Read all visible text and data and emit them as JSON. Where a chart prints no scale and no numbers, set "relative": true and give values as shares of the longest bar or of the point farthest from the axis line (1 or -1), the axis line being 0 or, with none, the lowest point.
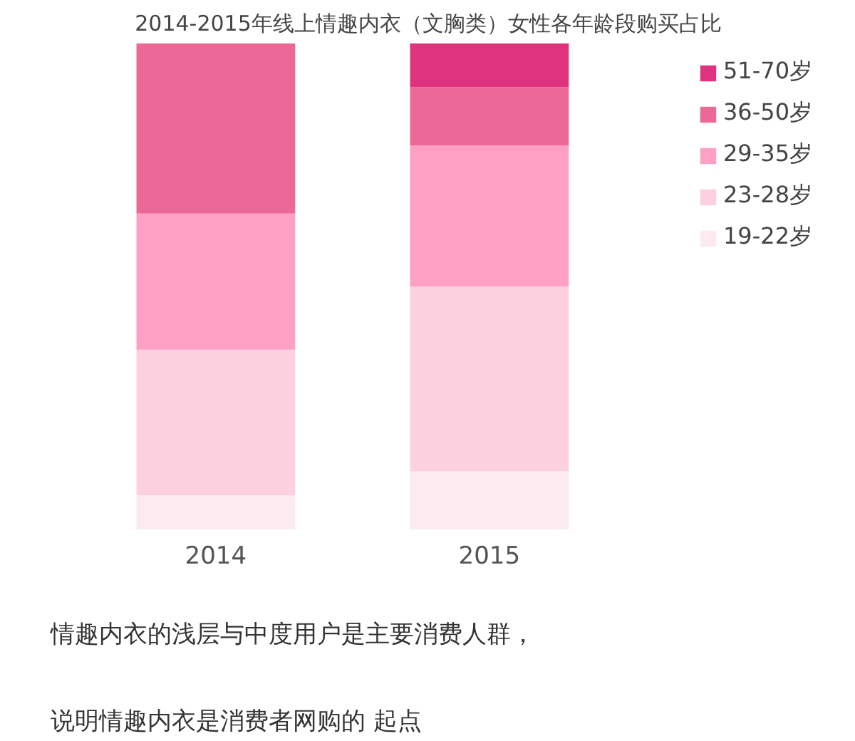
{
  "chart_data": {
    "type": "bar",
    "title": "2014-2015年线上情趣内衣（文胸类）女性各年龄段购买占比",
    "categories": [
      "2014",
      "2015"
    ],
    "stacked": true,
    "relative": true,
    "legend": "top right",
    "grid": false,
    "series": [
      {
        "name": "19-22岁",
        "color": "#fde9f0",
        "values": [
          0.07,
          0.12
        ]
      },
      {
        "name": "23-28岁",
        "color": "#fdd0e0",
        "values": [
          0.3,
          0.38
        ]
      },
      {
        "name": "29-35岁",
        "color": "#fda0c3",
        "values": [
          0.28,
          0.29
        ]
      },
      {
        "name": "36-50岁",
        "color": "#ec6896",
        "values": [
          0.35,
          0.12
        ]
      },
      {
        "name": "51-70岁",
        "color": "#e0337f",
        "values": [
          0.0,
          0.09
        ]
      }
    ],
    "annotations": [
      "情趣内衣的浅层与中度用户是主要消费人群，",
      "说明情趣内衣是消费者网购的 起点"
    ]
  }
}
